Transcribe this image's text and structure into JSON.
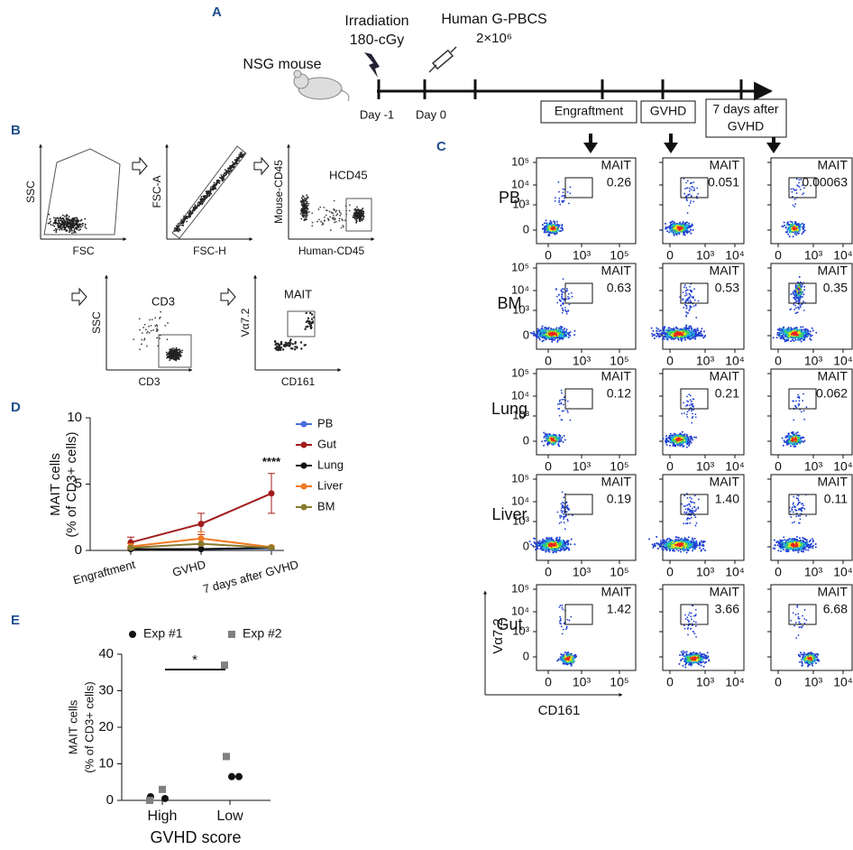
{
  "panel_a": {
    "label": "A",
    "irradiation": [
      "Irradiation",
      "180-cGy"
    ],
    "cells": [
      "Human G-PBCS",
      "2×10⁶"
    ],
    "mouse": "NSG mouse",
    "days": [
      "Day -1",
      "Day 0"
    ],
    "phases": [
      "Engraftment",
      "GVHD"
    ],
    "last_phase": [
      "7 days after",
      "GVHD"
    ]
  },
  "panel_b": {
    "label": "B",
    "plots": [
      {
        "y": "SSC",
        "x": "FSC"
      },
      {
        "y": "FSC-A",
        "x": "FSC-H"
      },
      {
        "y": "Mouse-CD45",
        "x": "Human-CD45",
        "gate": "HCD45"
      },
      {
        "y": "SSC",
        "x": "CD3",
        "gate": "CD3"
      },
      {
        "y": "Vα7.2",
        "x": "CD161",
        "gate": "MAIT"
      }
    ]
  },
  "panel_c": {
    "label": "C",
    "gate": "MAIT",
    "y_ticks": [
      "10⁵",
      "10⁴",
      "10³",
      "0"
    ],
    "x_ticks": [
      [
        "0",
        "10³",
        "10⁵"
      ],
      [
        "0",
        "10³",
        "10⁴"
      ],
      [
        "0",
        "10³",
        "10⁴"
      ]
    ],
    "y_axis": "Vα7.2",
    "x_axis": "CD161",
    "rows": [
      {
        "name": "PB",
        "values": [
          "0.26",
          "0.051",
          "0.00063"
        ]
      },
      {
        "name": "BM",
        "values": [
          "0.63",
          "0.53",
          "0.35"
        ]
      },
      {
        "name": "Lung",
        "values": [
          "0.12",
          "0.21",
          "0.062"
        ]
      },
      {
        "name": "Liver",
        "values": [
          "0.19",
          "1.40",
          "0.11"
        ]
      },
      {
        "name": "Gut",
        "values": [
          "1.42",
          "3.66",
          "6.68"
        ]
      }
    ]
  },
  "chart_data": [
    {
      "type": "line",
      "label": "D",
      "y_label": [
        "MAIT cells",
        "(% of CD3+ cells)"
      ],
      "categories": [
        "Engraftment",
        "GVHD",
        "7 days after GVHD"
      ],
      "ylim": [
        0,
        10
      ],
      "yticks": [
        0,
        5,
        10
      ],
      "annotation": "****",
      "series": [
        {
          "name": "PB",
          "color": "#4a6ee0",
          "values": [
            0.1,
            0.1,
            0.15
          ]
        },
        {
          "name": "Gut",
          "color": "#a11c1c",
          "values": [
            0.6,
            2.0,
            4.3
          ],
          "errors": [
            0.4,
            0.8,
            1.5
          ]
        },
        {
          "name": "Lung",
          "color": "#111111",
          "values": [
            0.1,
            0.1,
            0.2
          ]
        },
        {
          "name": "Liver",
          "color": "#f07a22",
          "values": [
            0.3,
            0.9,
            0.25
          ],
          "errors": [
            0.2,
            0.5,
            0.1
          ]
        },
        {
          "name": "BM",
          "color": "#8a7a2e",
          "values": [
            0.2,
            0.5,
            0.2
          ]
        }
      ]
    },
    {
      "type": "scatter",
      "label": "E",
      "y_label": [
        "MAIT cells",
        "(% of CD3+ cells)"
      ],
      "x_label": "GVHD score",
      "categories": [
        "High",
        "Low"
      ],
      "ylim": [
        0,
        40
      ],
      "yticks": [
        0,
        10,
        20,
        30,
        40
      ],
      "annotation": "*",
      "series": [
        {
          "name": "Exp #1",
          "color": "#111111",
          "marker": "circle",
          "x": [
            "High",
            "High",
            "Low",
            "Low"
          ],
          "values": [
            1,
            0.5,
            6.5,
            6.5
          ]
        },
        {
          "name": "Exp #2",
          "color": "#808080",
          "marker": "square",
          "x": [
            "High",
            "High",
            "Low",
            "Low"
          ],
          "values": [
            0,
            3,
            37,
            12
          ]
        }
      ]
    }
  ]
}
